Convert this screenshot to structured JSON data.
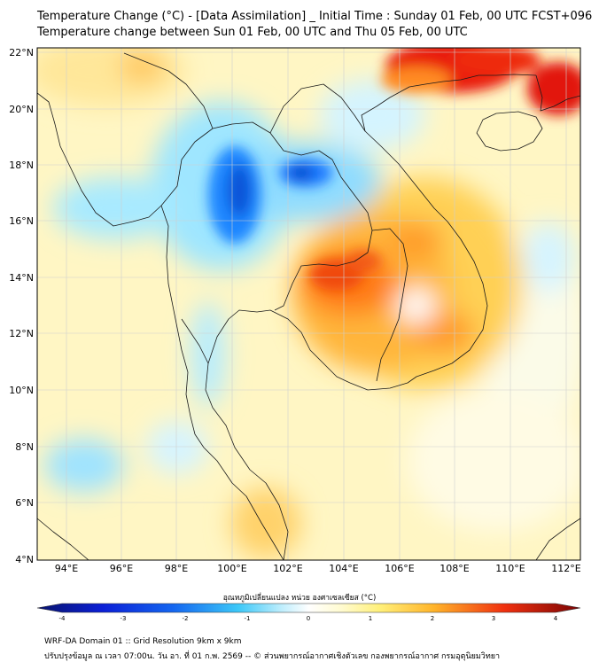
{
  "title_line1": "Temperature Change (°C) - [Data Assimilation] _ Initial Time : Sunday 01 Feb, 00 UTC FCST+096",
  "title_line2": "Temperature change between Sun 01 Feb, 00 UTC and Thu 05 Feb, 00 UTC",
  "lat_ticks": [
    "22°N",
    "20°N",
    "18°N",
    "16°N",
    "14°N",
    "12°N",
    "10°N",
    "8°N",
    "6°N",
    "4°N"
  ],
  "lon_ticks": [
    "94°E",
    "96°E",
    "98°E",
    "100°E",
    "102°E",
    "104°E",
    "106°E",
    "108°E",
    "110°E",
    "112°E"
  ],
  "colorbar": {
    "label": "อุณหภูมิเปลี่ยนแปลง หน่วย องศาเซลเซียส (°C)",
    "ticks": [
      "-4",
      "-3",
      "-2",
      "-1",
      "0",
      "1",
      "2",
      "3",
      "4"
    ]
  },
  "footer_line1": "WRF-DA Domain 01 :: Grid Resolution 9km x 9km",
  "footer_line2": "ปรับปรุงข้อมูล ณ เวลา 07:00น. วัน อา. ที่ 01 ก.พ. 2569 -- © ส่วนพยากรณ์อากาศเชิงตัวเลข กองพยากรณ์อากาศ กรมอุตุนิยมวิทยา",
  "colors": {
    "cold_strong": "#0a5fdc",
    "cold": "#38c8ff",
    "neutral": "#ffffff",
    "warm": "#ffe38a",
    "hot": "#ff9a1f",
    "very_hot": "#e8120c"
  }
}
